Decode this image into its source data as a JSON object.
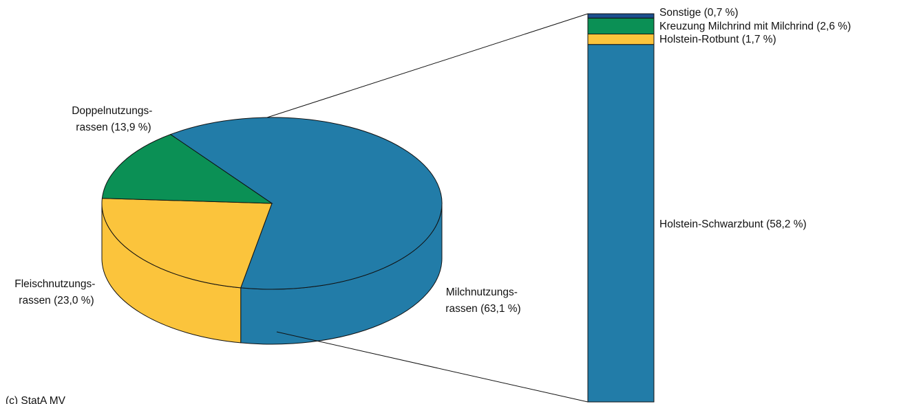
{
  "chart_data": [
    {
      "type": "pie",
      "style": "3d",
      "categories": [
        "Milchnutzungs-rassen",
        "Fleischnutzungs-rassen",
        "Doppelnutzungs-rassen"
      ],
      "values": [
        63.1,
        23.0,
        13.9
      ],
      "unit": "%",
      "labels": [
        {
          "line1": "Milchnutzungs-",
          "line2": "rassen (63,1 %)"
        },
        {
          "line1": "Fleischnutzungs-",
          "line2": "rassen (23,0 %)"
        },
        {
          "line1": "Doppelnutzungs-",
          "line2": "rassen (13,9 %)"
        }
      ],
      "colors": [
        "#227ca8",
        "#fbc43c",
        "#0b9055"
      ],
      "exploded_slice": "Milchnutzungs-rassen"
    },
    {
      "type": "bar",
      "orientation": "stacked-vertical",
      "breakdown_of": "Milchnutzungs-rassen",
      "categories": [
        "Holstein-Schwarzbunt",
        "Holstein-Rotbunt",
        "Kreuzung Milchrind mit Milchrind",
        "Sonstige"
      ],
      "values": [
        58.2,
        1.7,
        2.6,
        0.7
      ],
      "unit": "%",
      "labels": [
        "Holstein-Schwarzbunt (58,2 %)",
        "Holstein-Rotbunt (1,7 %)",
        "Kreuzung Milchrind mit Milchrind (2,6 %)",
        "Sonstige (0,7 %)"
      ],
      "colors": [
        "#227ca8",
        "#fbc43c",
        "#0b9055",
        "#1b4f8e"
      ]
    }
  ],
  "source": "(c) StatA MV"
}
